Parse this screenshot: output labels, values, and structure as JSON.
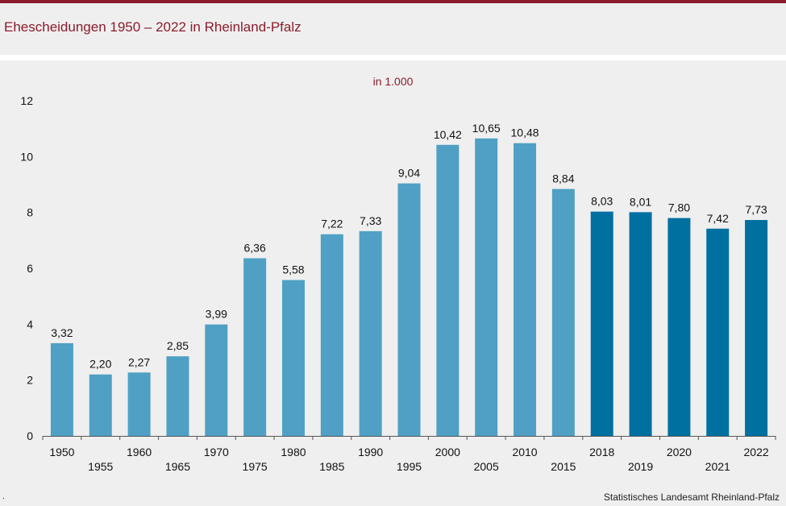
{
  "header": {
    "title": "Ehescheidungen 1950 – 2022 in Rheinland-Pfalz"
  },
  "footer": {
    "source": "Statistisches Landesamt  Rheinland-Pfalz",
    "mark": "."
  },
  "colors": {
    "accent": "#8b1c2c",
    "bar_light": "#4fa0c4",
    "bar_dark": "#0070a0"
  },
  "chart_data": {
    "type": "bar",
    "title": "Ehescheidungen 1950 – 2022 in Rheinland-Pfalz",
    "unit_label": "in 1.000",
    "xlabel": "",
    "ylabel": "",
    "ylim": [
      0,
      12
    ],
    "yticks": [
      0,
      2,
      4,
      6,
      8,
      10,
      12
    ],
    "grid": false,
    "categories": [
      "1950",
      "1955",
      "1960",
      "1965",
      "1970",
      "1975",
      "1980",
      "1985",
      "1990",
      "1995",
      "2000",
      "2005",
      "2010",
      "2015",
      "2018",
      "2019",
      "2020",
      "2021",
      "2022"
    ],
    "values": [
      3.32,
      2.2,
      2.27,
      2.85,
      3.99,
      6.36,
      5.58,
      7.22,
      7.33,
      9.04,
      10.42,
      10.65,
      10.48,
      8.84,
      8.03,
      8.01,
      7.8,
      7.42,
      7.73
    ],
    "value_labels": [
      "3,32",
      "2,20",
      "2,27",
      "2,85",
      "3,99",
      "6,36",
      "5,58",
      "7,22",
      "7,33",
      "9,04",
      "10,42",
      "10,65",
      "10,48",
      "8,84",
      "8,03",
      "8,01",
      "7,80",
      "7,42",
      "7,73"
    ],
    "highlight_from": "2018"
  }
}
